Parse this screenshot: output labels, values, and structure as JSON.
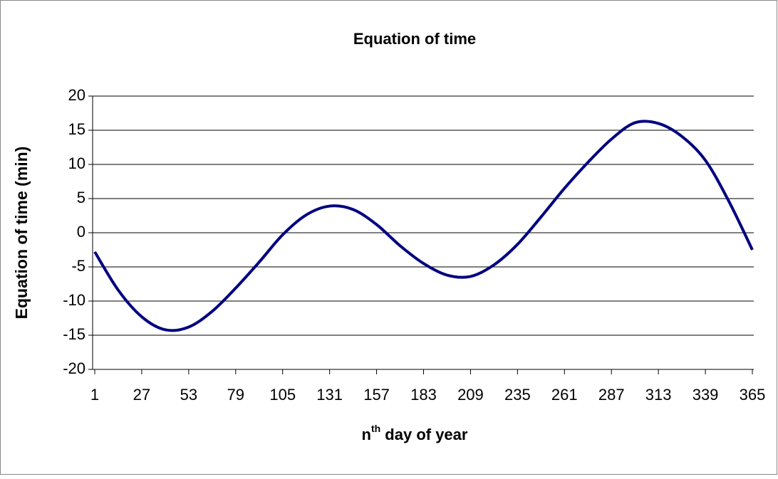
{
  "chart_data": {
    "type": "line",
    "title": "Equation of time",
    "y_label": "Equation of time (min)",
    "x_label": {
      "base": "n",
      "sup": "th",
      "rest": " day of year"
    },
    "x": [
      1,
      14,
      27,
      40,
      53,
      66,
      79,
      92,
      105,
      118,
      131,
      144,
      157,
      170,
      183,
      196,
      209,
      222,
      235,
      248,
      261,
      274,
      287,
      300,
      313,
      326,
      339,
      352,
      365
    ],
    "series": [
      {
        "name": "Equation of time",
        "color": "#000080",
        "values": [
          -2.8,
          -8.4,
          -12.3,
          -14.2,
          -13.8,
          -11.5,
          -8.1,
          -4.3,
          -0.3,
          2.6,
          3.9,
          3.4,
          1.2,
          -1.9,
          -4.5,
          -6.2,
          -6.4,
          -4.7,
          -1.7,
          2.3,
          6.5,
          10.3,
          13.7,
          16.1,
          16.0,
          14.1,
          10.6,
          4.6,
          -2.5
        ]
      }
    ],
    "xlim": [
      1,
      365
    ],
    "xticks": [
      1,
      27,
      53,
      79,
      105,
      131,
      157,
      183,
      209,
      235,
      261,
      287,
      313,
      339,
      365
    ],
    "ylim": [
      -20,
      20
    ],
    "yticks": [
      -20,
      -15,
      -10,
      -5,
      0,
      5,
      10,
      15,
      20
    ],
    "grid": true
  }
}
